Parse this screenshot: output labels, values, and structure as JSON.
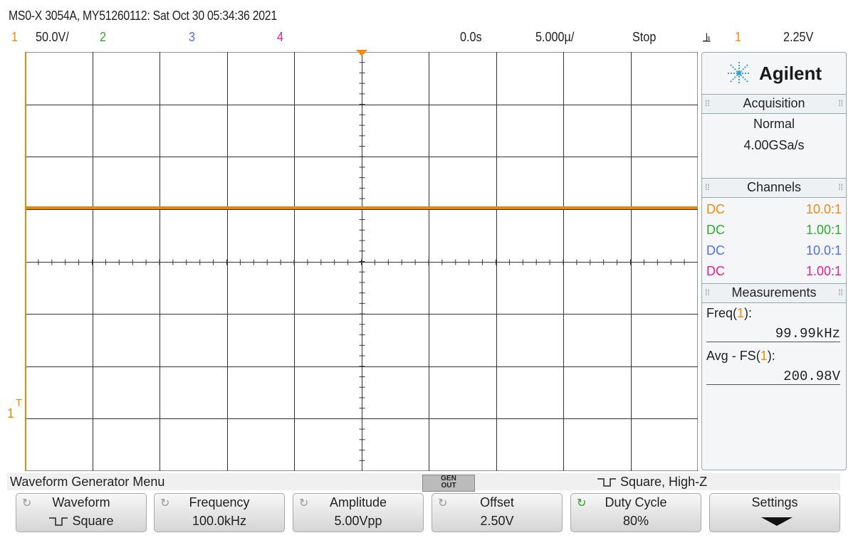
{
  "header": {
    "title": "MS0-X 3054A, MY51260112: Sat Oct 30 05:34:36 2021"
  },
  "status_bar": {
    "ch1_num": "1",
    "ch1_scale": "50.0V/",
    "ch2_num": "2",
    "ch3_num": "3",
    "ch4_num": "4",
    "time_offset": "0.0s",
    "time_scale": "5.000µ/",
    "run_state": "Stop",
    "trigger_edge": "⫡",
    "trigger_source": "1",
    "trigger_level": "2.25V"
  },
  "markers": {
    "ground_label": "1",
    "trigger_level_label": "T"
  },
  "side_panel": {
    "logo": "Agilent",
    "acquisition": {
      "heading": "Acquisition",
      "mode": "Normal",
      "rate": "4.00GSa/s"
    },
    "channels": {
      "heading": "Channels",
      "rows": [
        {
          "coupling": "DC",
          "probe": "10.0:1",
          "color": "#f08a10"
        },
        {
          "coupling": "DC",
          "probe": "1.00:1",
          "color": "#2cae2c"
        },
        {
          "coupling": "DC",
          "probe": "10.0:1",
          "color": "#4f6ff0"
        },
        {
          "coupling": "DC",
          "probe": "1.00:1",
          "color": "#e0209a"
        }
      ]
    },
    "measurements": {
      "heading": "Measurements",
      "items": [
        {
          "name_prefix": "Freq(",
          "channel": "1",
          "name_suffix": "):",
          "value": "99.99kHz"
        },
        {
          "name_prefix": "Avg - FS(",
          "channel": "1",
          "name_suffix": "):",
          "value": "200.98V"
        }
      ]
    }
  },
  "menu": {
    "title": "Waveform Generator Menu",
    "gen_top": "GEN",
    "gen_bottom": "OUT",
    "mode": "Square, High-Z"
  },
  "softkeys": [
    {
      "label": "Waveform",
      "value": "Square"
    },
    {
      "label": "Frequency",
      "value": "100.0kHz"
    },
    {
      "label": "Amplitude",
      "value": "5.00Vpp"
    },
    {
      "label": "Offset",
      "value": "2.50V"
    },
    {
      "label": "Duty Cycle",
      "value": "80%"
    },
    {
      "label": "Settings",
      "value": ""
    }
  ],
  "colors": {
    "ch1": "#f08a10",
    "ch2": "#2cae2c",
    "ch3": "#4f6ff0",
    "ch4": "#e0209a",
    "grid": "#222222",
    "trace": "#e08a10"
  }
}
